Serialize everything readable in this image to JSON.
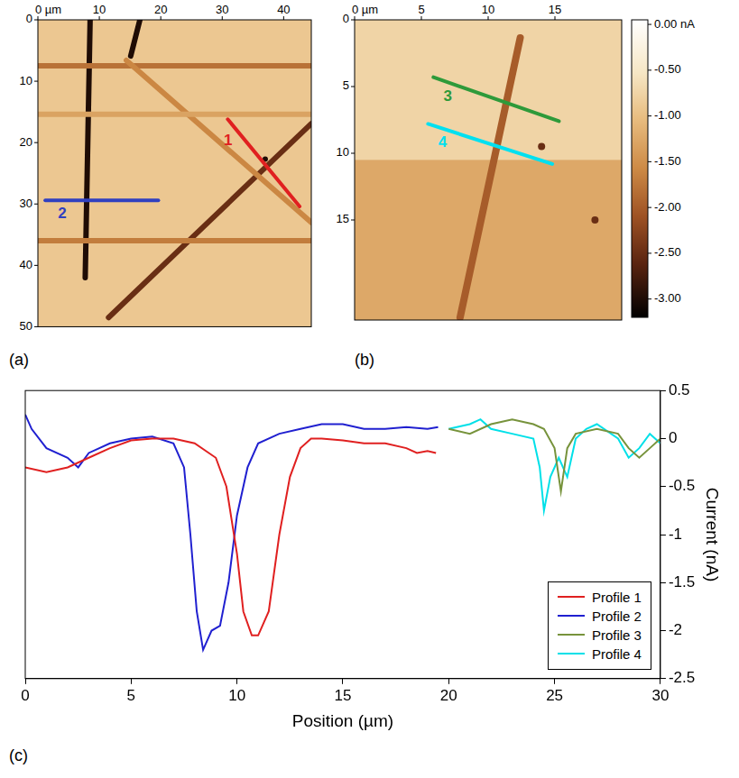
{
  "chart_data": {
    "type": "line",
    "panel": "(c)",
    "x_label": "Position (µm)",
    "y_label": "Current (nA)",
    "xlim": [
      0,
      30
    ],
    "ylim": [
      -2.5,
      0.5
    ],
    "xticks": [
      0,
      5,
      10,
      15,
      20,
      25,
      30
    ],
    "yticks": [
      -2.5,
      -2,
      -1.5,
      -1,
      -0.5,
      0,
      0.5
    ],
    "grid": false,
    "legend": "lower right",
    "series": [
      {
        "name": "Profile 1",
        "color": "#e02020",
        "x": [
          0,
          1,
          2,
          3,
          4,
          5,
          6,
          7,
          8,
          9,
          9.5,
          10,
          10.3,
          10.7,
          11,
          11.5,
          12,
          12.5,
          13,
          13.5,
          14,
          15,
          16,
          17,
          18,
          18.5,
          19,
          19.4
        ],
        "values": [
          -0.3,
          -0.35,
          -0.3,
          -0.2,
          -0.1,
          -0.02,
          0,
          0,
          -0.05,
          -0.2,
          -0.5,
          -1.2,
          -1.8,
          -2.05,
          -2.05,
          -1.8,
          -1.0,
          -0.4,
          -0.1,
          0,
          0,
          -0.02,
          -0.05,
          -0.05,
          -0.1,
          -0.15,
          -0.13,
          -0.15
        ]
      },
      {
        "name": "Profile 2",
        "color": "#2020d0",
        "x": [
          0,
          0.3,
          1,
          2,
          2.5,
          3,
          4,
          5,
          6,
          7,
          7.5,
          7.8,
          8.1,
          8.4,
          8.8,
          9.2,
          9.6,
          10,
          10.5,
          11,
          12,
          13,
          14,
          15,
          16,
          17,
          18,
          19,
          19.5
        ],
        "values": [
          0.25,
          0.1,
          -0.1,
          -0.2,
          -0.3,
          -0.15,
          -0.05,
          0,
          0.02,
          -0.05,
          -0.3,
          -1.0,
          -1.8,
          -2.2,
          -2.0,
          -1.95,
          -1.5,
          -0.8,
          -0.3,
          -0.05,
          0.05,
          0.1,
          0.15,
          0.15,
          0.1,
          0.1,
          0.12,
          0.1,
          0.12
        ]
      },
      {
        "name": "Profile 3",
        "color": "#77933c",
        "x": [
          20,
          21,
          22,
          23,
          24,
          24.5,
          25,
          25.3,
          25.6,
          26,
          27,
          28,
          28.5,
          29,
          29.5,
          30
        ],
        "values": [
          0.1,
          0.05,
          0.15,
          0.2,
          0.15,
          0.1,
          -0.1,
          -0.55,
          -0.1,
          0.05,
          0.1,
          0.05,
          -0.1,
          -0.2,
          -0.1,
          0
        ]
      },
      {
        "name": "Profile 4",
        "color": "#00e0e8",
        "x": [
          20,
          21,
          21.5,
          22,
          23,
          24,
          24.3,
          24.5,
          24.8,
          25.2,
          25.6,
          26,
          26.5,
          27,
          28,
          28.5,
          29,
          29.5,
          30
        ],
        "values": [
          0.1,
          0.15,
          0.2,
          0.1,
          0.05,
          0,
          -0.3,
          -0.75,
          -0.4,
          -0.2,
          -0.4,
          0,
          0.1,
          0.15,
          0,
          -0.2,
          -0.1,
          0.05,
          -0.05
        ]
      }
    ]
  },
  "maps": [
    {
      "panel": "(a)",
      "xlim": [
        0,
        44.5
      ],
      "ylim": [
        0,
        50
      ],
      "xticks": [
        {
          "value": 0,
          "label": "0 µm"
        },
        10,
        20,
        30,
        40
      ],
      "yticks": [
        0,
        10,
        20,
        30,
        40,
        50
      ],
      "background_current": -0.9,
      "regions": [],
      "streaks": [
        {
          "from": [
            8.5,
            0
          ],
          "to": [
            7.7,
            42
          ],
          "current": -3
        },
        {
          "from": [
            16.6,
            0
          ],
          "to": [
            15.1,
            5.9
          ],
          "current": -3
        },
        {
          "from": [
            0,
            7.5
          ],
          "to": [
            44.5,
            7.5
          ],
          "current": -1.8
        },
        {
          "from": [
            11.5,
            48.5
          ],
          "to": [
            44.5,
            16.9
          ],
          "current": -2.5
        },
        {
          "from": [
            14.4,
            6.6
          ],
          "to": [
            44.5,
            33
          ],
          "current": -1.6
        },
        {
          "from": [
            0,
            36
          ],
          "to": [
            44.5,
            36
          ],
          "current": -1.7
        },
        {
          "from": [
            0,
            15.4
          ],
          "to": [
            44.5,
            15.4
          ],
          "current": -1.3
        },
        {
          "from": [
            37,
            22.7
          ],
          "to": [
            37,
            22.7
          ],
          "current": -3
        }
      ],
      "profiles": [
        {
          "label": "1",
          "color": "#e02020",
          "from": [
            30.9,
            16.2
          ],
          "to": [
            42.6,
            30.4
          ]
        },
        {
          "label": "2",
          "color": "#3040c0",
          "from": [
            1.2,
            29.4
          ],
          "to": [
            19.6,
            29.4
          ]
        }
      ]
    },
    {
      "panel": "(b)",
      "xlim": [
        0,
        20
      ],
      "ylim": [
        0,
        22.5
      ],
      "xticks": [
        {
          "value": 0,
          "label": "0 µm"
        },
        5,
        10,
        15
      ],
      "yticks": [
        0,
        5,
        10,
        15
      ],
      "background_current": -0.75,
      "regions": [
        {
          "from": [
            0,
            10.5
          ],
          "to": [
            20,
            22.5
          ],
          "current": -1.25
        }
      ],
      "streaks": [
        {
          "from": [
            7.9,
            22.3
          ],
          "to": [
            12.4,
            1.35
          ],
          "current": -2.0
        },
        {
          "from": [
            14,
            9.5
          ],
          "to": [
            14,
            9.5
          ],
          "current": -2.5
        },
        {
          "from": [
            18,
            15
          ],
          "to": [
            18,
            15
          ],
          "current": -2.5
        }
      ],
      "profiles": [
        {
          "label": "3",
          "color": "#2e9a3a",
          "from": [
            5.9,
            4.3
          ],
          "to": [
            15.3,
            7.6
          ]
        },
        {
          "label": "4",
          "color": "#00e0f0",
          "from": [
            5.5,
            7.8
          ],
          "to": [
            14.8,
            10.8
          ]
        }
      ]
    }
  ],
  "colorbar": {
    "range": [
      0.05,
      -3.2
    ],
    "ticks": [
      {
        "value": 0,
        "label": "0.00 nA"
      },
      {
        "value": -0.5,
        "label": "-0.50"
      },
      {
        "value": -1,
        "label": "-1.00"
      },
      {
        "value": -1.5,
        "label": "-1.50"
      },
      {
        "value": -2,
        "label": "-2.00"
      },
      {
        "value": -2.5,
        "label": "-2.50"
      },
      {
        "value": -3,
        "label": "-3.00"
      }
    ]
  }
}
